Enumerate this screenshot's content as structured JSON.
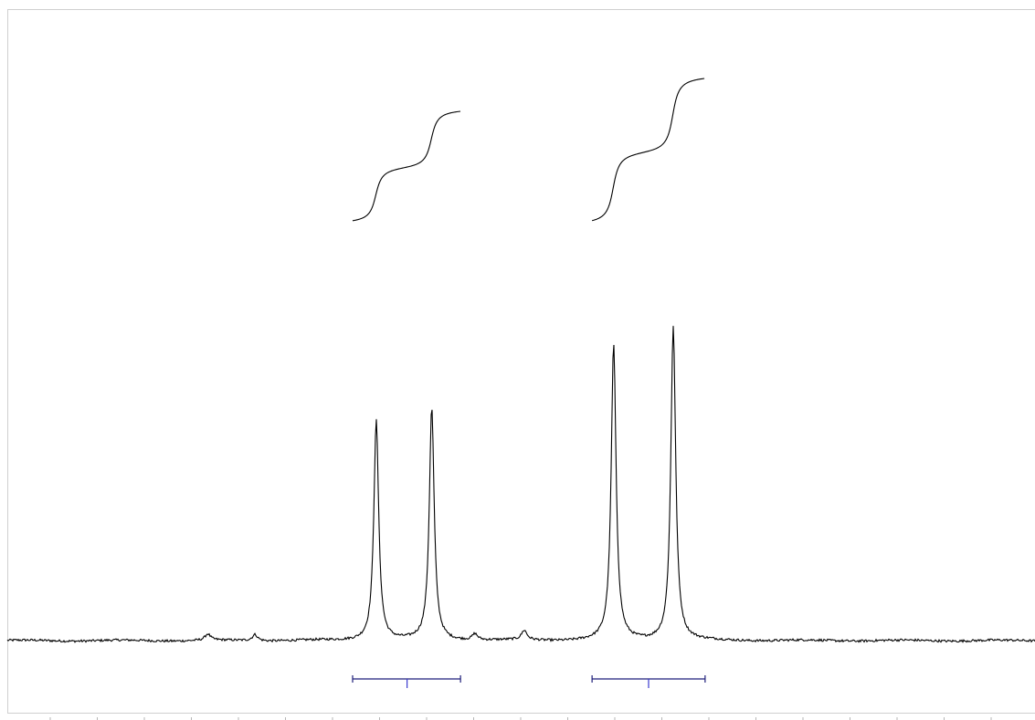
{
  "chart_data": {
    "type": "line",
    "title": "",
    "xlabel": "",
    "ylabel": "",
    "grid": false,
    "colors": {
      "trace": "#000000",
      "integral": "#000000",
      "multiplet_bracket": "#1f1f7a",
      "frame": "#cfcfcf"
    },
    "peaks": [
      {
        "relative_height": 0.7,
        "center_fraction": 0.359
      },
      {
        "relative_height": 0.74,
        "center_fraction": 0.413
      },
      {
        "relative_height": 0.94,
        "center_fraction": 0.59
      },
      {
        "relative_height": 1.0,
        "center_fraction": 0.648
      }
    ],
    "minor_peaks": [
      {
        "relative_height": 0.02,
        "center_fraction": 0.195
      },
      {
        "relative_height": 0.02,
        "center_fraction": 0.241
      },
      {
        "relative_height": 0.02,
        "center_fraction": 0.455
      },
      {
        "relative_height": 0.03,
        "center_fraction": 0.503
      }
    ],
    "multiplets": [
      {
        "start_fraction": 0.336,
        "end_fraction": 0.441,
        "center_fraction": 0.389
      },
      {
        "start_fraction": 0.569,
        "end_fraction": 0.679,
        "center_fraction": 0.624
      }
    ],
    "integrals": [
      {
        "start_fraction": 0.336,
        "end_fraction": 0.441,
        "relative_area": 1.0
      },
      {
        "start_fraction": 0.569,
        "end_fraction": 0.679,
        "relative_area": 1.3
      }
    ]
  }
}
